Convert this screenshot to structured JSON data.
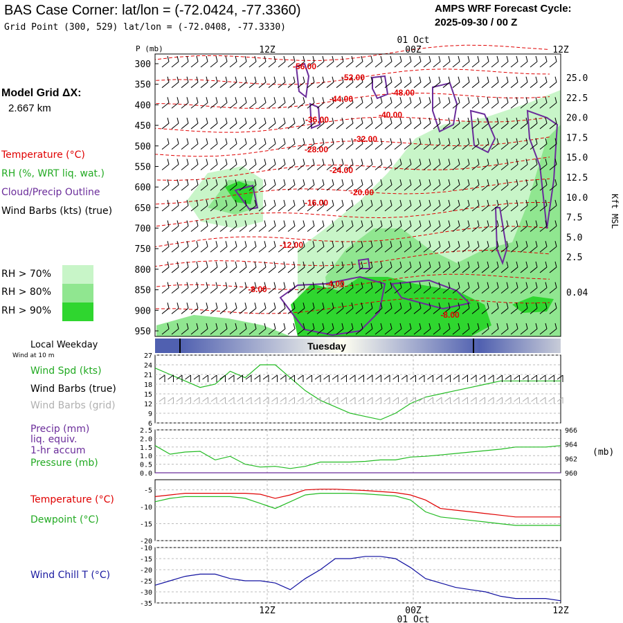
{
  "header": {
    "title": "BAS Case Corner:  lat/lon = (-72.0424, -77.3360)",
    "subtitle": "Grid Point (300, 529) lat/lon = (-72.0408, -77.3330)",
    "cycle_label": "AMPS WRF Forecast Cycle:",
    "cycle_value": "2025-09-30 / 00  Z"
  },
  "sidebar": {
    "grid_label": "Model Grid ΔX:",
    "grid_value": "2.667 km",
    "legend_temp": "Temperature (°C)",
    "legend_rh": "RH (%, WRT liq. wat.)",
    "legend_cloud": "Cloud/Precip Outline",
    "legend_wind": "Wind Barbs (kts) (true)",
    "rh_levels": [
      "RH > 70%",
      "RH > 80%",
      "RH > 90%"
    ],
    "local_weekday": "Local Weekday",
    "wind_at": "Wind at 10 m",
    "wind_spd": "Wind Spd (kts)",
    "wind_barbs_true": "Wind Barbs (true)",
    "wind_barbs_grid": "Wind Barbs (grid)",
    "precip_l1": "Precip (mm)",
    "precip_l2": "liq. equiv.",
    "precip_l3": "1-hr accum",
    "pressure": "Pressure (mb)",
    "temperature": "Temperature (°C)",
    "dewpoint": "Dewpoint (°C)",
    "wind_chill": "Wind Chill T (°C)"
  },
  "colors": {
    "temp": "#e00000",
    "rh70": "#c8f5c8",
    "rh80": "#90e690",
    "rh90": "#2fd62f",
    "cloud": "#6a2c9a",
    "green_line": "#22bb22",
    "red_line": "#e00000",
    "blue_line": "#1010a0",
    "day_band": "#5060b0",
    "grid": "#bbbbbb"
  },
  "chart_data": [
    {
      "type": "heatmap",
      "y_axis_label": "P (mb)",
      "pressure_levels": [
        300,
        350,
        400,
        450,
        500,
        550,
        600,
        650,
        700,
        750,
        800,
        850,
        900,
        950
      ],
      "right_axis_label": "Kft MSL",
      "right_ticks": [
        "25.0",
        "22.5",
        "20.0",
        "17.5",
        "15.0",
        "12.5",
        "10.0",
        "7.5",
        "5.0",
        "2.5",
        "0.04"
      ],
      "time_ticks_top": [
        "12Z",
        "00Z",
        "12Z"
      ],
      "date_label": "01 Oct",
      "temperature_contours": [
        "-56.00",
        "-52.00",
        "-48.00",
        "-44.00",
        "-40.00",
        "-36.00",
        "-32.00",
        "-28.00",
        "-24.00",
        "-20.00",
        "-16.00",
        "-12.00",
        "-8.00",
        "-4.00",
        "-8.00"
      ]
    },
    {
      "type": "bar",
      "title": "Tuesday"
    },
    {
      "type": "line",
      "y_ticks": [
        27,
        24,
        21,
        18,
        15,
        12,
        9,
        6
      ],
      "series": [
        {
          "name": "Wind Spd (kts)",
          "values": [
            23,
            21,
            19,
            17,
            18,
            22,
            20,
            24,
            24,
            20,
            16,
            13,
            11,
            9,
            8,
            7,
            9,
            12,
            14,
            15,
            16,
            17,
            18,
            19,
            19,
            19,
            19,
            19
          ]
        }
      ]
    },
    {
      "type": "line",
      "y_ticks_left": [
        "2.5",
        "2.0",
        "1.5",
        "1.0",
        "0.5",
        "0.0"
      ],
      "y_ticks_right": [
        966,
        964,
        962,
        960
      ],
      "right_unit": "(mb)",
      "series": [
        {
          "name": "Pressure (mb)",
          "values": [
            963.8,
            962.6,
            962.9,
            963.0,
            961.8,
            962.3,
            961.2,
            960.8,
            960.9,
            960.6,
            960.9,
            961.5,
            961.5,
            961.5,
            961.6,
            961.8,
            961.8,
            962.2,
            962.3,
            962.5,
            962.7,
            962.9,
            963.1,
            963.3,
            963.6,
            963.6,
            963.6,
            963.8
          ]
        },
        {
          "name": "Precip (mm)",
          "values": [
            0,
            0,
            0,
            0,
            0,
            0,
            0,
            0,
            0,
            0,
            0,
            0,
            0,
            0,
            0,
            0,
            0,
            0,
            0,
            0,
            0,
            0,
            0,
            0,
            0,
            0,
            0,
            0
          ]
        }
      ]
    },
    {
      "type": "line",
      "y_ticks": [
        -5,
        -10,
        -15,
        -20
      ],
      "series": [
        {
          "name": "Temperature (°C)",
          "values": [
            -7.0,
            -6.5,
            -6.0,
            -6.0,
            -6.0,
            -6.0,
            -6.0,
            -6.3,
            -7.5,
            -6.5,
            -5.0,
            -4.8,
            -4.8,
            -5.0,
            -5.2,
            -5.5,
            -5.8,
            -6.5,
            -8.0,
            -10.5,
            -11.0,
            -11.5,
            -12.0,
            -12.5,
            -13.0,
            -13.0,
            -13.0,
            -13.0
          ]
        },
        {
          "name": "Dewpoint (°C)",
          "values": [
            -8.5,
            -7.5,
            -7.0,
            -7.0,
            -7.0,
            -7.0,
            -7.5,
            -9.0,
            -10.5,
            -8.5,
            -6.5,
            -6.0,
            -6.0,
            -6.0,
            -6.2,
            -6.5,
            -6.8,
            -8.0,
            -11.5,
            -13.0,
            -13.5,
            -14.0,
            -14.5,
            -15.0,
            -15.5,
            -15.5,
            -15.5,
            -15.5
          ]
        }
      ]
    },
    {
      "type": "line",
      "y_ticks": [
        -10,
        -15,
        -20,
        -25,
        -30,
        -35
      ],
      "series": [
        {
          "name": "Wind Chill T (°C)",
          "values": [
            -27,
            -25,
            -23,
            -22,
            -22,
            -24,
            -25,
            -25,
            -26,
            -29,
            -24,
            -20,
            -15,
            -15,
            -14,
            -14,
            -15,
            -19,
            -24,
            -26,
            -28,
            -29,
            -30,
            -32,
            -33,
            -33,
            -33,
            -34
          ]
        }
      ]
    }
  ]
}
